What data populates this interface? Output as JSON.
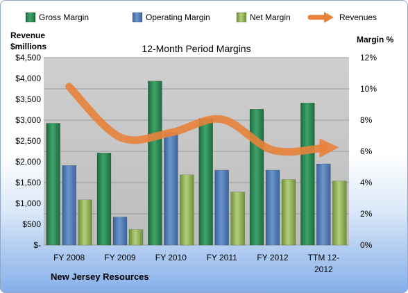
{
  "chart_data": {
    "type": "bar",
    "title": "12-Month Period Margins",
    "company": "New Jersey Resources",
    "ylabel_left": [
      "Revenue",
      "$millions"
    ],
    "ylabel_right": "Margin %",
    "ylim_left": [
      0,
      4500
    ],
    "ylim_right": [
      0,
      12
    ],
    "left_ticks": [
      "$-",
      "$500",
      "$1,000",
      "$1,500",
      "$2,000",
      "$2,500",
      "$3,000",
      "$3,500",
      "$4,000",
      "$4,500"
    ],
    "right_ticks": [
      "0%",
      "2%",
      "4%",
      "6%",
      "8%",
      "10%",
      "12%"
    ],
    "categories": [
      [
        "FY 2008"
      ],
      [
        "FY 2009"
      ],
      [
        "FY 2010"
      ],
      [
        "FY 2011"
      ],
      [
        "FY 2012"
      ],
      [
        "TTM 12-",
        "2012"
      ]
    ],
    "series": [
      {
        "name": "Gross Margin",
        "axis": "right",
        "color": "#2e8b57",
        "values": [
          7.8,
          5.9,
          10.5,
          8.1,
          8.7,
          9.1
        ]
      },
      {
        "name": "Operating Margin",
        "axis": "right",
        "color": "#4f81bd",
        "values": [
          5.1,
          1.8,
          7.2,
          4.8,
          4.8,
          5.2
        ]
      },
      {
        "name": "Net Margin",
        "axis": "right",
        "color": "#9bbb59",
        "values": [
          2.9,
          1.0,
          4.5,
          3.4,
          4.2,
          4.1
        ]
      },
      {
        "name": "Revenues",
        "axis": "left",
        "color": "#e8823a",
        "type": "line",
        "values": [
          3800,
          2590,
          2700,
          3020,
          2280,
          2330
        ]
      }
    ],
    "legend": "top",
    "grid": true
  }
}
